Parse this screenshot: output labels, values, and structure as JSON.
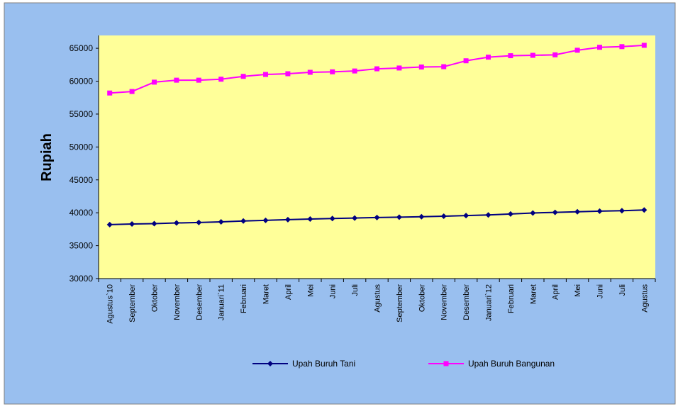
{
  "colors": {
    "outer_background": "#99BFEF",
    "plot_background": "#FFFF99",
    "axis": "#000000",
    "series_tani": "#000080",
    "series_bangunan": "#FF00FF"
  },
  "chart_data": {
    "type": "line",
    "title": "",
    "xlabel": "",
    "ylabel": "Rupiah",
    "ylim": [
      30000,
      65000
    ],
    "yticks": [
      30000,
      35000,
      40000,
      45000,
      50000,
      55000,
      60000,
      65000
    ],
    "ytick_labels": [
      "30000",
      "35000",
      "40000",
      "45000",
      "50000",
      "55000",
      "60000",
      "65000"
    ],
    "grid": false,
    "legend_position": "bottom",
    "categories": [
      "Agustus`10",
      "September",
      "Oktober",
      "November",
      "Desember",
      "Januari`11",
      "Februari",
      "Maret",
      "April",
      "Mei",
      "Juni",
      "Juli",
      "Agustus",
      "September",
      "Oktober",
      "November",
      "Desember",
      "Januari`12",
      "Februari",
      "Maret",
      "April",
      "Mei",
      "Juni",
      "Juli",
      "Agustus"
    ],
    "series": [
      {
        "name": "Upah Buruh Tani",
        "color": "#000080",
        "marker": "diamond",
        "values": [
          38200,
          38300,
          38350,
          38450,
          38530,
          38620,
          38750,
          38850,
          38950,
          39050,
          39130,
          39200,
          39280,
          39330,
          39400,
          39480,
          39570,
          39670,
          39820,
          39970,
          40060,
          40150,
          40250,
          40310,
          40420
        ]
      },
      {
        "name": "Upah Buruh Bangunan",
        "color": "#FF00FF",
        "marker": "square",
        "values": [
          58200,
          58430,
          59850,
          60150,
          60150,
          60300,
          60730,
          61020,
          61130,
          61350,
          61420,
          61550,
          61880,
          62000,
          62150,
          62200,
          63100,
          63650,
          63870,
          63930,
          64000,
          64700,
          65150,
          65250,
          65450
        ]
      }
    ]
  }
}
